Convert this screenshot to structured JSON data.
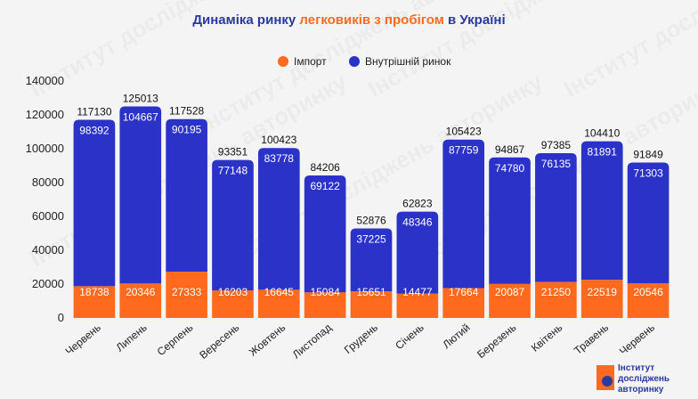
{
  "title": {
    "part1": "Динаміка ринку ",
    "highlight": "легковиків з пробігом",
    "part2": " в Україні"
  },
  "colors": {
    "import": "#ff6a1f",
    "domestic": "#2b32c8",
    "title": "#2a3a9e",
    "background": "#f4f4f4"
  },
  "logo": {
    "line1": "Інститут",
    "line2": "досліджень",
    "line3": "авторинку"
  },
  "watermark_text": "Інститут досліджень авторинку",
  "chart_data": {
    "type": "bar",
    "stacked": true,
    "categories": [
      "Червень",
      "Липень",
      "Серпень",
      "Вересень",
      "Жовтень",
      "Листопад",
      "Грудень",
      "Січень",
      "Лютий",
      "Березень",
      "Квітень",
      "Травень",
      "Червень"
    ],
    "series": [
      {
        "name": "Імпорт",
        "values": [
          18738,
          20346,
          27333,
          16203,
          16645,
          15084,
          15651,
          14477,
          17664,
          20087,
          21250,
          22519,
          20546
        ]
      },
      {
        "name": "Внутрішній ринок",
        "values": [
          98392,
          104667,
          90195,
          77148,
          83778,
          69122,
          37225,
          48346,
          87759,
          74780,
          76135,
          81891,
          71303
        ]
      }
    ],
    "totals": [
      117130,
      125013,
      117528,
      93351,
      100423,
      84206,
      52876,
      62823,
      105423,
      94867,
      97385,
      104410,
      91849
    ],
    "ylim": [
      0,
      140000
    ],
    "yticks": [
      0,
      20000,
      40000,
      60000,
      80000,
      100000,
      120000,
      140000
    ],
    "legend_position": "top-center",
    "grid": false
  }
}
